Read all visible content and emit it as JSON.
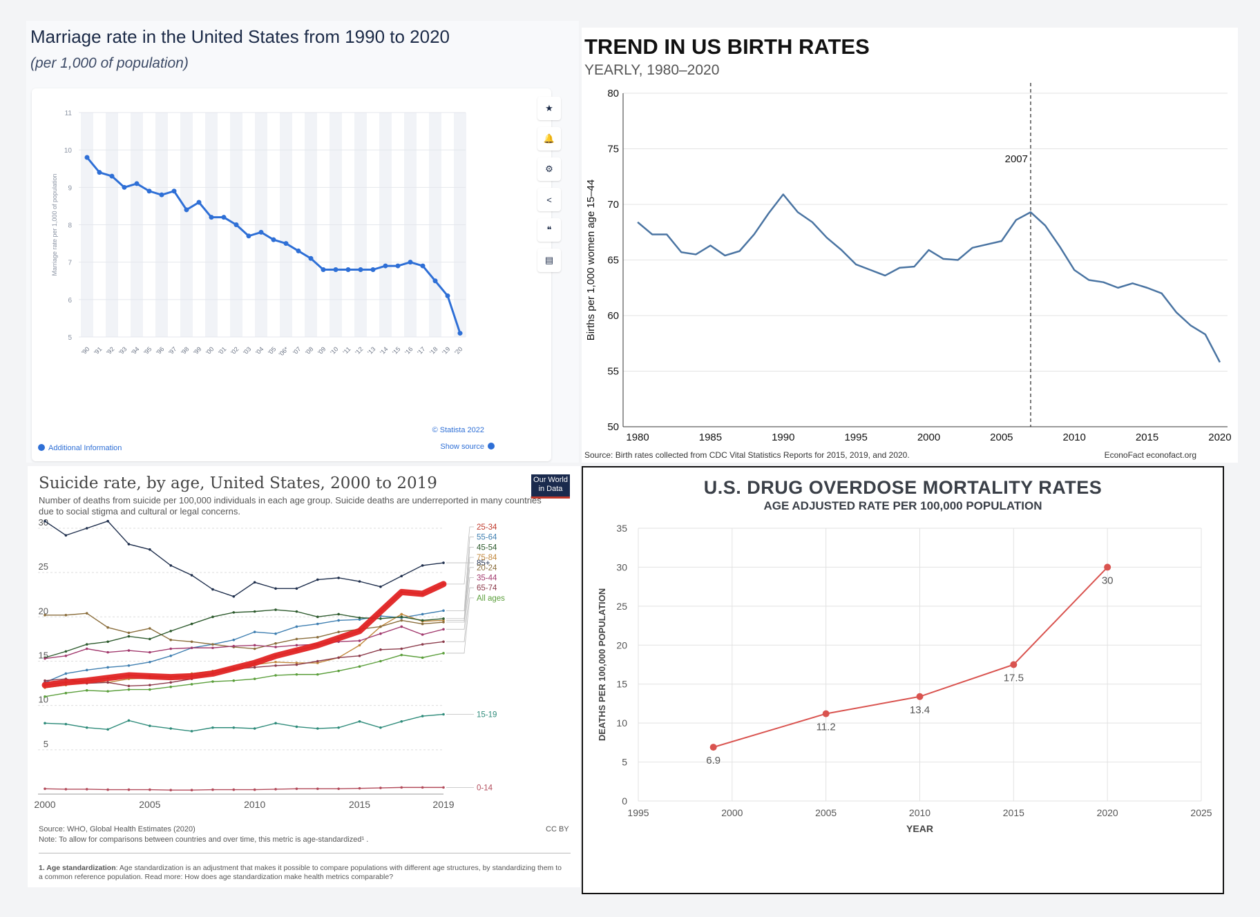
{
  "marriage": {
    "title": "Marriage rate in the United States from 1990 to 2020",
    "subtitle": "(per 1,000 of population)",
    "footer_credit": "© Statista 2022",
    "footer_source": "Show source",
    "footer_info": "Additional Information",
    "tools": [
      "star-icon",
      "bell-icon",
      "gear-icon",
      "share-icon",
      "quote-icon",
      "print-icon"
    ],
    "chart_data": {
      "type": "line",
      "ylabel": "Marriage rate per 1,000 of population",
      "ylim": [
        5,
        11
      ],
      "yticks": [
        5,
        6,
        7,
        8,
        9,
        10,
        11
      ],
      "categories": [
        "'90",
        "'91",
        "'92",
        "'93",
        "'94",
        "'95",
        "'96",
        "'97",
        "'98",
        "'99",
        "'00",
        "'01",
        "'02",
        "'03",
        "'04",
        "'05",
        "'06*",
        "'07",
        "'08",
        "'09",
        "'10",
        "'11",
        "'12",
        "'13",
        "'14",
        "'15",
        "'16",
        "'17",
        "'18",
        "'19",
        "'20"
      ],
      "values": [
        9.8,
        9.4,
        9.3,
        9.0,
        9.1,
        8.9,
        8.8,
        8.9,
        8.4,
        8.6,
        8.2,
        8.2,
        8.0,
        7.7,
        7.8,
        7.6,
        7.5,
        7.3,
        7.1,
        6.8,
        6.8,
        6.8,
        6.8,
        6.8,
        6.9,
        6.9,
        7.0,
        6.9,
        6.5,
        6.1,
        5.1
      ],
      "color": "#2e6fd6"
    }
  },
  "births": {
    "title": "TREND IN US BIRTH RATES",
    "subtitle": "YEARLY, 1980–2020",
    "source": "Source: Birth rates collected from CDC Vital Statistics Reports for 2015, 2019, and 2020.",
    "credit": "EconoFact  econofact.org",
    "chart_data": {
      "type": "line",
      "ylabel": "Births per 1,000 women age 15–44",
      "ylim": [
        50,
        80
      ],
      "yticks": [
        50,
        55,
        60,
        65,
        70,
        75,
        80
      ],
      "xlim": [
        1980,
        2020
      ],
      "xticks": [
        1980,
        1985,
        1990,
        1995,
        2000,
        2005,
        2010,
        2015,
        2020
      ],
      "annotation": {
        "x": 2007,
        "label": "2007"
      },
      "x": [
        1980,
        1981,
        1982,
        1983,
        1984,
        1985,
        1986,
        1987,
        1988,
        1989,
        1990,
        1991,
        1992,
        1993,
        1994,
        1995,
        1996,
        1997,
        1998,
        1999,
        2000,
        2001,
        2002,
        2003,
        2004,
        2005,
        2006,
        2007,
        2008,
        2009,
        2010,
        2011,
        2012,
        2013,
        2014,
        2015,
        2016,
        2017,
        2018,
        2019,
        2020
      ],
      "values": [
        68.4,
        67.3,
        67.3,
        65.7,
        65.5,
        66.3,
        65.4,
        65.8,
        67.3,
        69.2,
        70.9,
        69.3,
        68.4,
        67.0,
        65.9,
        64.6,
        64.1,
        63.6,
        64.3,
        64.4,
        65.9,
        65.1,
        65.0,
        66.1,
        66.4,
        66.7,
        68.6,
        69.3,
        68.1,
        66.2,
        64.1,
        63.2,
        63.0,
        62.5,
        62.9,
        62.5,
        62.0,
        60.3,
        59.1,
        58.3,
        55.8
      ],
      "color": "#4a74a2"
    }
  },
  "suicide": {
    "title": "Suicide rate, by age, United States, 2000 to 2019",
    "subtitle": "Number of deaths from suicide per 100,000 individuals in each age group. Suicide deaths are underreported in many countries due to social stigma and cultural or legal concerns.",
    "logo_line1": "Our World",
    "logo_line2": "in Data",
    "source": "Source: WHO, Global Health Estimates (2020)",
    "license": "CC BY",
    "note": "Note: To allow for comparisons between countries and over time, this metric is age-standardized¹ .",
    "footnote_bold": "1. Age standardization",
    "footnote_text": ": Age standardization is an adjustment that makes it possible to compare populations with different age structures, by standardizing them to a common reference population.  Read more: How does age standardization make health metrics comparable?",
    "chart_data": {
      "type": "line",
      "ylim": [
        0,
        30
      ],
      "yticks": [
        5,
        10,
        15,
        20,
        25,
        30
      ],
      "xlim": [
        2000,
        2019
      ],
      "xticks": [
        2000,
        2005,
        2010,
        2015,
        2019
      ],
      "x": [
        2000,
        2001,
        2002,
        2003,
        2004,
        2005,
        2006,
        2007,
        2008,
        2009,
        2010,
        2011,
        2012,
        2013,
        2014,
        2015,
        2016,
        2017,
        2018,
        2019
      ],
      "series": [
        {
          "name": "85+",
          "color": "#1f2f4d",
          "values": [
            30.8,
            29.2,
            30.0,
            30.8,
            28.2,
            27.6,
            25.8,
            24.7,
            23.1,
            22.3,
            23.9,
            23.2,
            23.2,
            24.2,
            24.4,
            24.0,
            23.4,
            24.6,
            25.8,
            26.1
          ]
        },
        {
          "name": "25-34",
          "color": "#c0392b",
          "values": [
            12.3,
            12.6,
            12.8,
            13.1,
            13.4,
            13.3,
            13.2,
            13.3,
            13.6,
            14.2,
            14.8,
            15.6,
            16.2,
            16.8,
            17.6,
            18.4,
            20.6,
            22.8,
            22.6,
            23.7
          ]
        },
        {
          "name": "55-64",
          "color": "#3f7fb1",
          "values": [
            12.6,
            13.6,
            14.0,
            14.3,
            14.5,
            14.9,
            15.6,
            16.5,
            16.9,
            17.4,
            18.3,
            18.1,
            18.9,
            19.2,
            19.6,
            19.7,
            20.1,
            19.9,
            20.3,
            20.7
          ]
        },
        {
          "name": "75-84",
          "color": "#c1873b",
          "values": [
            12.0,
            12.3,
            12.8,
            12.6,
            13.0,
            13.1,
            13.2,
            13.6,
            13.9,
            14.2,
            14.6,
            14.9,
            14.8,
            14.8,
            15.4,
            16.8,
            18.9,
            20.3,
            19.5,
            19.6
          ]
        },
        {
          "name": "20-24",
          "color": "#8a6d3b",
          "values": [
            20.2,
            20.2,
            20.4,
            18.8,
            18.2,
            18.7,
            17.4,
            17.2,
            16.9,
            16.6,
            16.4,
            17.0,
            17.5,
            17.7,
            18.3,
            18.6,
            18.9,
            19.6,
            19.2,
            19.4
          ]
        },
        {
          "name": "45-54",
          "color": "#2d5a2d",
          "values": [
            15.4,
            16.1,
            16.9,
            17.2,
            17.8,
            17.5,
            18.4,
            19.2,
            20.0,
            20.5,
            20.6,
            20.8,
            20.6,
            20.0,
            20.3,
            19.9,
            19.8,
            20.0,
            19.6,
            19.8
          ]
        },
        {
          "name": "35-44",
          "color": "#a23a6e",
          "values": [
            15.3,
            15.6,
            16.4,
            16.0,
            16.2,
            16.0,
            16.4,
            16.5,
            16.5,
            16.7,
            16.8,
            16.6,
            16.8,
            16.9,
            17.2,
            17.3,
            18.1,
            18.9,
            18.0,
            18.6
          ]
        },
        {
          "name": "65-74",
          "color": "#8b3a4a",
          "values": [
            12.8,
            13.0,
            12.5,
            12.6,
            12.2,
            12.3,
            12.6,
            13.0,
            13.6,
            14.1,
            14.3,
            14.5,
            14.6,
            15.0,
            15.4,
            15.6,
            16.3,
            16.4,
            16.9,
            17.2
          ]
        },
        {
          "name": "All ages",
          "color": "#5a9e3a",
          "values": [
            11.0,
            11.4,
            11.7,
            11.6,
            11.8,
            11.8,
            12.1,
            12.4,
            12.7,
            12.8,
            13.0,
            13.4,
            13.5,
            13.5,
            13.9,
            14.4,
            15.0,
            15.7,
            15.4,
            15.9
          ]
        },
        {
          "name": "15-19",
          "color": "#2e8b7a",
          "values": [
            8.0,
            7.9,
            7.5,
            7.3,
            8.3,
            7.7,
            7.4,
            7.1,
            7.5,
            7.5,
            7.4,
            8.0,
            7.6,
            7.4,
            7.5,
            8.2,
            7.5,
            8.2,
            8.8,
            9.0
          ]
        },
        {
          "name": "0-14",
          "color": "#b24a5a",
          "values": [
            0.6,
            0.55,
            0.55,
            0.5,
            0.5,
            0.5,
            0.45,
            0.45,
            0.5,
            0.5,
            0.5,
            0.55,
            0.6,
            0.6,
            0.6,
            0.65,
            0.7,
            0.75,
            0.75,
            0.75
          ]
        }
      ],
      "highlight": {
        "series": "25-34",
        "color": "#e02424"
      }
    }
  },
  "overdose": {
    "title": "U.S. DRUG OVERDOSE MORTALITY RATES",
    "subtitle": "AGE ADJUSTED RATE PER 100,000 POPULATION",
    "chart_data": {
      "type": "line",
      "xlabel": "YEAR",
      "ylabel": "DEATHS PER 100,000 POPULATION",
      "xlim": [
        1995,
        2025
      ],
      "xticks": [
        1995,
        2000,
        2005,
        2010,
        2015,
        2020,
        2025
      ],
      "ylim": [
        0,
        35
      ],
      "yticks": [
        0,
        5,
        10,
        15,
        20,
        25,
        30,
        35
      ],
      "x": [
        1999,
        2005,
        2010,
        2015,
        2020
      ],
      "values": [
        6.9,
        11.2,
        13.4,
        17.5,
        30
      ],
      "labels": [
        "6.9",
        "11.2",
        "13.4",
        "17.5",
        "30"
      ],
      "color": "#d9534f"
    }
  }
}
